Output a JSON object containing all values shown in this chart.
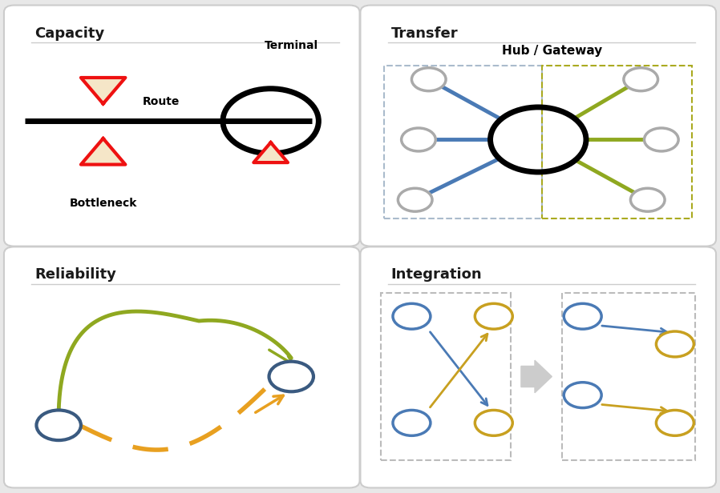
{
  "bg_color": "#e8e8e8",
  "panel_edge": "#cccccc",
  "title_color": "#1a1a1a",
  "panel_titles": [
    "Capacity",
    "Transfer",
    "Reliability",
    "Integration"
  ],
  "red_color": "#ee1111",
  "cream_color": "#f5e6c8",
  "black_color": "#111111",
  "blue_color": "#4a7ab5",
  "olive_color": "#8fa820",
  "gold_color": "#e8a020",
  "gray_node": "#aaaaaa",
  "dark_blue_node": "#3a5a80",
  "gold_node": "#c8a020",
  "blue_rect_color": "#aabbcc",
  "olive_rect_color": "#aaaa20"
}
